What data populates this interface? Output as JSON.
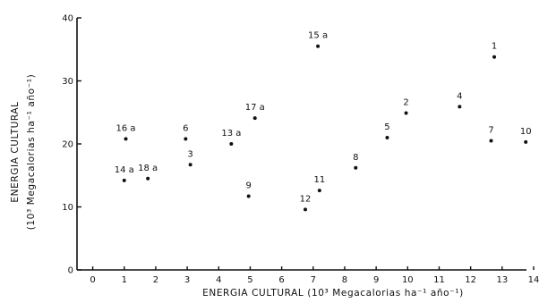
{
  "chart_data": {
    "type": "scatter",
    "xlabel": "ENERGIA CULTURAL (10³ Megacalorias ha⁻¹ año⁻¹)",
    "ylabel_line1": "ENERGIA CULTURAL",
    "ylabel_line2": "(10³ Megacalorias ha⁻¹ año⁻¹)",
    "xlim": [
      -0.5,
      14
    ],
    "ylim": [
      0,
      40
    ],
    "xticks": [
      "0",
      "1",
      "2",
      "3",
      "4",
      "5",
      "6",
      "7",
      "8",
      "9",
      "10",
      "11",
      "12",
      "13",
      "14"
    ],
    "xtick_values": [
      0,
      1,
      2,
      3,
      4,
      5,
      6,
      7,
      8,
      9,
      10,
      11,
      12,
      13,
      14
    ],
    "yticks": [
      "0",
      "10",
      "20",
      "30",
      "40"
    ],
    "ytick_values": [
      0,
      10,
      20,
      30,
      40
    ],
    "grid": false,
    "points": [
      {
        "label": "16 a",
        "x": 1.05,
        "y": 20.8
      },
      {
        "label": "14 a",
        "x": 1.0,
        "y": 14.2
      },
      {
        "label": "18 a",
        "x": 1.75,
        "y": 14.5
      },
      {
        "label": "6",
        "x": 2.95,
        "y": 20.8
      },
      {
        "label": "3",
        "x": 3.1,
        "y": 16.7
      },
      {
        "label": "13 a",
        "x": 4.4,
        "y": 20.0
      },
      {
        "label": "17 a",
        "x": 5.15,
        "y": 24.1
      },
      {
        "label": "9",
        "x": 4.95,
        "y": 11.7
      },
      {
        "label": "12",
        "x": 6.75,
        "y": 9.6
      },
      {
        "label": "11",
        "x": 7.2,
        "y": 12.6
      },
      {
        "label": "15 a",
        "x": 7.15,
        "y": 35.5
      },
      {
        "label": "8",
        "x": 8.35,
        "y": 16.2
      },
      {
        "label": "5",
        "x": 9.35,
        "y": 21.0
      },
      {
        "label": "2",
        "x": 9.95,
        "y": 24.9
      },
      {
        "label": "4",
        "x": 11.65,
        "y": 25.9
      },
      {
        "label": "1",
        "x": 12.75,
        "y": 33.8
      },
      {
        "label": "7",
        "x": 12.65,
        "y": 20.5
      },
      {
        "label": "10",
        "x": 13.75,
        "y": 20.3
      }
    ]
  }
}
